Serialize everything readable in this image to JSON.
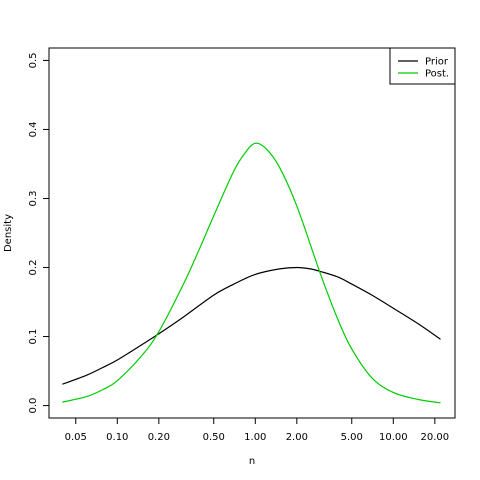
{
  "chart_data": {
    "type": "line",
    "title": "",
    "xlabel": "n",
    "ylabel": "Density",
    "x_scale": "log",
    "xlim": [
      0.032,
      28
    ],
    "ylim": [
      -0.018,
      0.518
    ],
    "x_ticks": [
      {
        "value": 0.05,
        "label": "0.05"
      },
      {
        "value": 0.1,
        "label": "0.10"
      },
      {
        "value": 0.2,
        "label": "0.20"
      },
      {
        "value": 0.5,
        "label": "0.50"
      },
      {
        "value": 1,
        "label": "1.00"
      },
      {
        "value": 2,
        "label": "2.00"
      },
      {
        "value": 5,
        "label": "5.00"
      },
      {
        "value": 10,
        "label": "10.00"
      },
      {
        "value": 20,
        "label": "20.00"
      }
    ],
    "y_ticks": [
      {
        "value": 0.0,
        "label": "0.0"
      },
      {
        "value": 0.1,
        "label": "0.1"
      },
      {
        "value": 0.2,
        "label": "0.2"
      },
      {
        "value": 0.3,
        "label": "0.3"
      },
      {
        "value": 0.4,
        "label": "0.4"
      },
      {
        "value": 0.5,
        "label": "0.5"
      }
    ],
    "grid": false,
    "legend_position": "top-right",
    "series": [
      {
        "name": "Prior",
        "color": "#000000",
        "x": [
          0.04,
          0.06,
          0.08,
          0.1,
          0.15,
          0.2,
          0.3,
          0.5,
          0.7,
          1.0,
          1.5,
          2.0,
          2.5,
          3.0,
          4.0,
          5.0,
          7.0,
          10.0,
          15.0,
          22.0
        ],
        "y": [
          0.031,
          0.044,
          0.056,
          0.066,
          0.088,
          0.104,
          0.128,
          0.16,
          0.176,
          0.19,
          0.198,
          0.2,
          0.198,
          0.194,
          0.186,
          0.176,
          0.16,
          0.141,
          0.119,
          0.096
        ]
      },
      {
        "name": "Post.",
        "color": "#00cc00",
        "x": [
          0.04,
          0.06,
          0.08,
          0.1,
          0.15,
          0.2,
          0.3,
          0.4,
          0.5,
          0.7,
          0.85,
          1.0,
          1.2,
          1.5,
          2.0,
          3.0,
          4.0,
          5.0,
          7.0,
          10.0,
          15.0,
          22.0
        ],
        "y": [
          0.005,
          0.013,
          0.024,
          0.036,
          0.072,
          0.107,
          0.175,
          0.23,
          0.275,
          0.34,
          0.367,
          0.38,
          0.372,
          0.345,
          0.289,
          0.188,
          0.123,
          0.082,
          0.04,
          0.019,
          0.009,
          0.004
        ]
      }
    ]
  }
}
